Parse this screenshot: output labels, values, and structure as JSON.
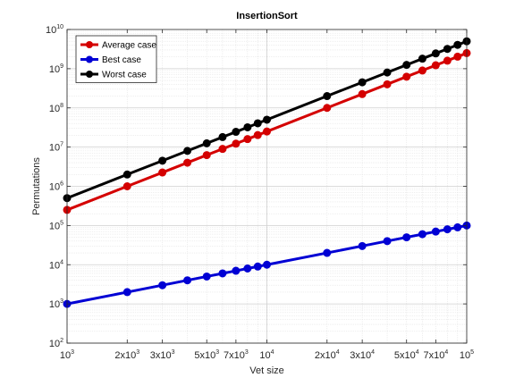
{
  "chart_data": {
    "type": "line",
    "title": "InsertionSort",
    "xlabel": "Vet size",
    "ylabel": "Permutations",
    "xscale": "log",
    "yscale": "log",
    "xlim": [
      1000,
      100000
    ],
    "ylim": [
      100,
      10000000000
    ],
    "grid": true,
    "minor_grid": true,
    "legend_position": "top-left",
    "x": [
      1000,
      2000,
      3000,
      4000,
      5000,
      6000,
      7000,
      8000,
      9000,
      10000,
      20000,
      30000,
      40000,
      50000,
      60000,
      70000,
      80000,
      90000,
      100000
    ],
    "series": [
      {
        "name": "Average case",
        "color": "#d40000",
        "values": [
          250000,
          1000000,
          2250000,
          4000000,
          6250000,
          9000000,
          12250000,
          16000000,
          20250000,
          25000000,
          100000000,
          225000000,
          400000000,
          625000000,
          900000000,
          1225000000,
          1600000000,
          2025000000,
          2500000000
        ]
      },
      {
        "name": "Best case",
        "color": "#0000d4",
        "values": [
          1000,
          2000,
          3000,
          4000,
          5000,
          6000,
          7000,
          8000,
          9000,
          10000,
          20000,
          30000,
          40000,
          50000,
          60000,
          70000,
          80000,
          90000,
          100000
        ]
      },
      {
        "name": "Worst case",
        "color": "#000000",
        "values": [
          500000,
          2000000,
          4500000,
          8000000,
          12500000,
          18000000,
          24500000,
          32000000,
          40500000,
          50000000,
          200000000,
          450000000,
          800000000,
          1250000000,
          1800000000,
          2450000000,
          3200000000,
          4050000000,
          5000000000
        ]
      }
    ],
    "xticks": [
      {
        "value": 1000,
        "mant": "",
        "base": "10",
        "exp": "3"
      },
      {
        "value": 2000,
        "mant": "2x",
        "base": "10",
        "exp": "3"
      },
      {
        "value": 3000,
        "mant": "3x",
        "base": "10",
        "exp": "3"
      },
      {
        "value": 5000,
        "mant": "5x",
        "base": "10",
        "exp": "3"
      },
      {
        "value": 7000,
        "mant": "7x",
        "base": "10",
        "exp": "3"
      },
      {
        "value": 10000,
        "mant": "",
        "base": "10",
        "exp": "4"
      },
      {
        "value": 20000,
        "mant": "2x",
        "base": "10",
        "exp": "4"
      },
      {
        "value": 30000,
        "mant": "3x",
        "base": "10",
        "exp": "4"
      },
      {
        "value": 50000,
        "mant": "5x",
        "base": "10",
        "exp": "4"
      },
      {
        "value": 70000,
        "mant": "7x",
        "base": "10",
        "exp": "4"
      },
      {
        "value": 100000,
        "mant": "",
        "base": "10",
        "exp": "5"
      }
    ],
    "yticks": [
      {
        "value": 100,
        "base": "10",
        "exp": "2"
      },
      {
        "value": 1000,
        "base": "10",
        "exp": "3"
      },
      {
        "value": 10000,
        "base": "10",
        "exp": "4"
      },
      {
        "value": 100000,
        "base": "10",
        "exp": "5"
      },
      {
        "value": 1000000,
        "base": "10",
        "exp": "6"
      },
      {
        "value": 10000000,
        "base": "10",
        "exp": "7"
      },
      {
        "value": 100000000,
        "base": "10",
        "exp": "8"
      },
      {
        "value": 1000000000,
        "base": "10",
        "exp": "9"
      },
      {
        "value": 10000000000,
        "base": "10",
        "exp": "10"
      }
    ]
  }
}
